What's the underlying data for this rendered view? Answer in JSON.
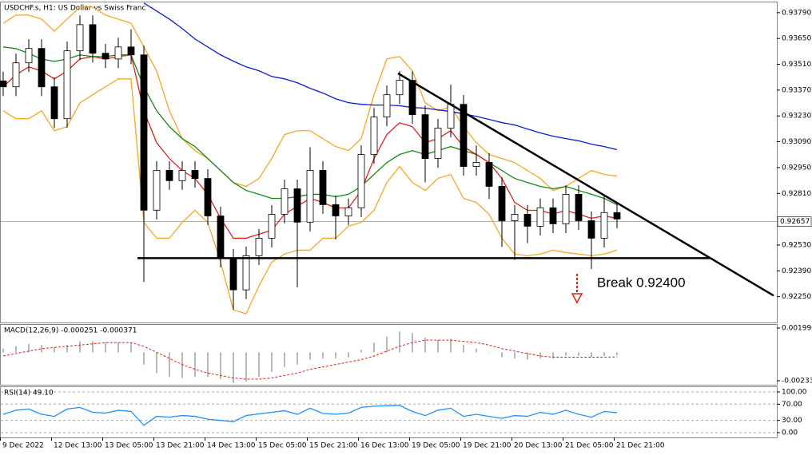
{
  "chart_data": [
    {
      "type": "candlestick",
      "title": "USDCHF.s, H1:  US Dollar vs Swiss Franc",
      "x": [
        1,
        5,
        9,
        13,
        17,
        21,
        25,
        29,
        33,
        37,
        41,
        45,
        49,
        53,
        57,
        61,
        65,
        69,
        73,
        77,
        81,
        85,
        89,
        93,
        97,
        101,
        105,
        109,
        113,
        117,
        121,
        125,
        129,
        133,
        137,
        141,
        145,
        149,
        153,
        157,
        161,
        165,
        169,
        173,
        177,
        181,
        185,
        189,
        193
      ],
      "candles": {
        "open": [
          0.9342,
          0.93388,
          0.93518,
          0.93596,
          0.93388,
          0.93215,
          0.93583,
          0.93725,
          0.9357,
          0.93539,
          0.93604,
          0.93561,
          0.92719,
          0.92935,
          0.92879,
          0.92935,
          0.92891,
          0.92688,
          0.92459,
          0.92287,
          0.92472,
          0.92567,
          0.92697,
          0.92835,
          0.92654,
          0.92935,
          0.92749,
          0.92688,
          0.92732,
          0.93021,
          0.93224,
          0.93345,
          0.93423,
          0.93237,
          0.92999,
          0.93164,
          0.93293,
          0.92956,
          0.92978,
          0.92848,
          0.92662,
          0.92697,
          0.92632,
          0.92732,
          0.92645,
          0.92805,
          0.92662,
          0.92567,
          0.92706
        ],
        "high": [
          0.9347,
          0.93568,
          0.93646,
          0.93646,
          0.93438,
          0.93633,
          0.93775,
          0.93775,
          0.9362,
          0.93654,
          0.937,
          0.93611,
          0.92985,
          0.92985,
          0.92985,
          0.92985,
          0.92941,
          0.92738,
          0.92509,
          0.92522,
          0.92617,
          0.92747,
          0.92885,
          0.92885,
          0.9306,
          0.92985,
          0.92799,
          0.92782,
          0.93071,
          0.93274,
          0.93395,
          0.93473,
          0.93473,
          0.93287,
          0.93214,
          0.934,
          0.93343,
          0.9307,
          0.93028,
          0.92898,
          0.92747,
          0.92747,
          0.92782,
          0.92782,
          0.92855,
          0.92855,
          0.92712,
          0.928,
          0.92756
        ],
        "low": [
          0.93338,
          0.93338,
          0.93468,
          0.93338,
          0.93165,
          0.93165,
          0.93533,
          0.9352,
          0.93489,
          0.93489,
          0.93511,
          0.9233,
          0.92669,
          0.92829,
          0.92829,
          0.92841,
          0.92638,
          0.92409,
          0.9218,
          0.92237,
          0.92422,
          0.92517,
          0.92647,
          0.923,
          0.92604,
          0.92699,
          0.9256,
          0.92638,
          0.92682,
          0.92971,
          0.93174,
          0.93295,
          0.93187,
          0.9287,
          0.92949,
          0.93114,
          0.92906,
          0.92906,
          0.9278,
          0.9252,
          0.9245,
          0.9254,
          0.92582,
          0.92595,
          0.92595,
          0.92612,
          0.924,
          0.92517,
          0.92621
        ],
        "close": [
          0.93388,
          0.93518,
          0.93596,
          0.93388,
          0.93215,
          0.93583,
          0.93725,
          0.9357,
          0.93539,
          0.93604,
          0.93561,
          0.92719,
          0.92935,
          0.92879,
          0.92935,
          0.92891,
          0.92688,
          0.92459,
          0.92287,
          0.92472,
          0.92567,
          0.92697,
          0.92835,
          0.92654,
          0.92935,
          0.92749,
          0.92688,
          0.92732,
          0.93021,
          0.93224,
          0.93345,
          0.93423,
          0.93237,
          0.92999,
          0.93164,
          0.93293,
          0.92956,
          0.92978,
          0.92848,
          0.92662,
          0.92697,
          0.92632,
          0.92732,
          0.92645,
          0.92805,
          0.92662,
          0.92567,
          0.92706,
          0.92671
        ],
        "up_color": "#ffffff",
        "down_color": "#000000",
        "wick_color": "#000000"
      },
      "series": [
        {
          "kind": "line",
          "color": "#f5a623",
          "values": [
            0.93733,
            0.93777,
            0.93777,
            0.93755,
            0.9369,
            0.93755,
            0.9382,
            0.9382,
            0.93777,
            0.93755,
            0.93733,
            0.93604,
            0.93474,
            0.93258,
            0.93107,
            0.93042,
            0.92999,
            0.92934,
            0.92869,
            0.92848,
            0.92891,
            0.92999,
            0.93129,
            0.9315,
            0.9315,
            0.93107,
            0.93064,
            0.93042,
            0.93107,
            0.93345,
            0.93539,
            0.93552,
            0.93474,
            0.93301,
            0.93258,
            0.9328,
            0.93172,
            0.93085,
            0.93021,
            0.92999,
            0.92977,
            0.92934,
            0.92891,
            0.92826,
            0.92848,
            0.92891,
            0.92934,
            0.92913,
            0.92904
          ]
        },
        {
          "kind": "line",
          "color": "#f5a623",
          "values": [
            0.93258,
            0.93215,
            0.93215,
            0.93258,
            0.9315,
            0.93172,
            0.93301,
            0.93345,
            0.93388,
            0.93431,
            0.93431,
            0.92653,
            0.92567,
            0.92567,
            0.92653,
            0.92718,
            0.92653,
            0.92437,
            0.92178,
            0.92157,
            0.92308,
            0.92437,
            0.92481,
            0.92502,
            0.92502,
            0.92567,
            0.92567,
            0.92632,
            0.92653,
            0.92718,
            0.92869,
            0.92956,
            0.92869,
            0.92826,
            0.92891,
            0.92913,
            0.92783,
            0.92761,
            0.92697,
            0.92567,
            0.92481,
            0.92472,
            0.92481,
            0.92502,
            0.92489,
            0.92481,
            0.92472,
            0.92481,
            0.92502
          ]
        },
        {
          "kind": "line",
          "color": "#0a1bd6",
          "values": [
            null,
            null,
            null,
            null,
            null,
            null,
            null,
            null,
            null,
            null,
            null,
            0.93842,
            0.93799,
            0.93755,
            0.93704,
            0.93647,
            0.93604,
            0.93561,
            0.93527,
            0.93496,
            0.93475,
            0.93444,
            0.93431,
            0.9341,
            0.9338,
            0.93354,
            0.93323,
            0.93302,
            0.93293,
            0.93289,
            0.93289,
            0.93285,
            0.93276,
            0.93272,
            0.93263,
            0.93254,
            0.93241,
            0.93228,
            0.93211,
            0.93194,
            0.93181,
            0.93159,
            0.93138,
            0.9312,
            0.93107,
            0.93095,
            0.93077,
            0.93064,
            0.93047
          ]
        },
        {
          "kind": "line",
          "color": "#138a13",
          "values": [
            0.93604,
            0.93595,
            0.93569,
            0.93539,
            0.93526,
            0.93539,
            0.93561,
            0.93552,
            0.93552,
            0.93561,
            0.93561,
            0.93388,
            0.93258,
            0.93172,
            0.93107,
            0.93064,
            0.92999,
            0.92934,
            0.92869,
            0.92826,
            0.92805,
            0.92783,
            0.92783,
            0.92792,
            0.92805,
            0.92805,
            0.92792,
            0.92805,
            0.92848,
            0.92913,
            0.92977,
            0.93021,
            0.93042,
            0.93021,
            0.93042,
            0.93064,
            0.93042,
            0.93021,
            0.92977,
            0.92934,
            0.92891,
            0.92869,
            0.92848,
            0.92835,
            0.92848,
            0.92826,
            0.92805,
            0.92783,
            0.92748
          ]
        },
        {
          "kind": "line",
          "color": "#e0201b",
          "values": [
            0.93388,
            0.93453,
            0.93496,
            0.93474,
            0.93431,
            0.93474,
            0.93539,
            0.93552,
            0.93539,
            0.93552,
            0.93561,
            0.93258,
            0.93085,
            0.92999,
            0.92934,
            0.92891,
            0.92805,
            0.92675,
            0.92567,
            0.92567,
            0.92589,
            0.9261,
            0.92697,
            0.9274,
            0.92783,
            0.92761,
            0.92731,
            0.92731,
            0.92826,
            0.92999,
            0.93129,
            0.93193,
            0.93172,
            0.93085,
            0.93107,
            0.9315,
            0.93064,
            0.93021,
            0.92977,
            0.92891,
            0.92761,
            0.92718,
            0.92718,
            0.92697,
            0.92718,
            0.92697,
            0.92675,
            0.92688,
            0.92675
          ]
        }
      ],
      "lines": [
        {
          "color": "#000000",
          "x": [
            43,
            222
          ],
          "y": [
            0.92459,
            0.92459
          ]
        },
        {
          "color": "#000000",
          "x": [
            124.5,
            242
          ],
          "y": [
            0.93461,
            0.92256
          ]
        }
      ],
      "annotation": "Break 0.92400",
      "current_price": 0.92657,
      "xlim": [
        0,
        243
      ],
      "ylim": [
        0.9211,
        0.9385
      ],
      "yticks": [
        {
          "value": 0.9379,
          "label": "0.93790"
        },
        {
          "value": 0.9365,
          "label": "0.93650"
        },
        {
          "value": 0.9351,
          "label": "0.93510"
        },
        {
          "value": 0.9337,
          "label": "0.93370"
        },
        {
          "value": 0.9323,
          "label": "0.93230"
        },
        {
          "value": 0.9309,
          "label": "0.93090"
        },
        {
          "value": 0.9295,
          "label": "0.92950"
        },
        {
          "value": 0.9281,
          "label": "0.92810"
        },
        {
          "value": 0.9253,
          "label": "0.92530"
        },
        {
          "value": 0.9239,
          "label": "0.92390"
        },
        {
          "value": 0.9225,
          "label": "0.92250"
        }
      ]
    },
    {
      "type": "macd",
      "title": "MACD(12,26,9) -0.000251 -0.000371",
      "x": [
        1,
        5,
        9,
        13,
        17,
        21,
        25,
        29,
        33,
        37,
        41,
        45,
        49,
        53,
        57,
        61,
        65,
        69,
        73,
        77,
        81,
        85,
        89,
        93,
        97,
        101,
        105,
        109,
        113,
        117,
        121,
        125,
        129,
        133,
        137,
        141,
        145,
        149,
        153,
        157,
        161,
        165,
        169,
        173,
        177,
        181,
        185,
        189,
        193
      ],
      "series": [
        {
          "kind": "bar",
          "color": "#a0a0a0",
          "values": [
            0.0003,
            0.0005,
            0.0007,
            0.0006,
            0.0004,
            0.0006,
            0.0009,
            0.0009,
            0.0008,
            0.0008,
            0.0008,
            -0.001,
            -0.0017,
            -0.002,
            -0.0021,
            -0.002,
            -0.002,
            -0.0022,
            -0.0025,
            -0.0024,
            -0.002,
            -0.0016,
            -0.0012,
            -0.001,
            -0.0006,
            -0.0005,
            -0.0005,
            -0.0004,
            0.0002,
            0.0008,
            0.0013,
            0.0017,
            0.0016,
            0.0012,
            0.001,
            0.0011,
            0.0006,
            0.0003,
            0,
            -0.0004,
            -0.0005,
            -0.0006,
            -0.0005,
            -0.0005,
            -0.0003,
            -0.0003,
            -0.0004,
            -0.0003,
            -0.000251
          ]
        },
        {
          "kind": "dashed",
          "color": "#e0201b",
          "values": [
            -0.0003,
            -0.0001,
            0.0001,
            0.0003,
            0.0004,
            0.0005,
            0.0006,
            0.0007,
            0.0008,
            0.0008,
            0.0008,
            0.0005,
            0,
            -0.0005,
            -0.001,
            -0.0014,
            -0.0017,
            -0.0019,
            -0.0021,
            -0.0022,
            -0.0022,
            -0.0021,
            -0.0019,
            -0.0017,
            -0.0014,
            -0.0012,
            -0.001,
            -0.0008,
            -0.0006,
            -0.0003,
            0.0001,
            0.0005,
            0.0008,
            0.001,
            0.001,
            0.001,
            0.0009,
            0.0008,
            0.0006,
            0.0003,
            0.0001,
            -0.0001,
            -0.0003,
            -0.0004,
            -0.0004,
            -0.0004,
            -0.0004,
            -0.0004,
            -0.000371
          ]
        }
      ],
      "xlim": [
        0,
        243
      ],
      "ylim": [
        -0.00266,
        0.00232
      ],
      "yticks": [
        {
          "value": 0.00199,
          "label": "0.001990"
        },
        -0.002331
      ]
    },
    {
      "type": "line",
      "title": "RSI(14) 49.10",
      "x": [
        1,
        5,
        9,
        13,
        17,
        21,
        25,
        29,
        33,
        37,
        41,
        45,
        49,
        53,
        57,
        61,
        65,
        69,
        73,
        77,
        81,
        85,
        89,
        93,
        97,
        101,
        105,
        109,
        113,
        117,
        121,
        125,
        129,
        133,
        137,
        141,
        145,
        149,
        153,
        157,
        161,
        165,
        169,
        173,
        177,
        181,
        185,
        189,
        193
      ],
      "series": [
        {
          "kind": "line",
          "color": "#1e90ff",
          "values": [
            45,
            55,
            58,
            45,
            40,
            58,
            62,
            50,
            48,
            55,
            52,
            18,
            40,
            38,
            42,
            40,
            33,
            30,
            27,
            42,
            46,
            50,
            54,
            45,
            60,
            47,
            45,
            48,
            62,
            65,
            66,
            67,
            52,
            42,
            55,
            60,
            40,
            45,
            40,
            35,
            42,
            40,
            50,
            45,
            55,
            45,
            38,
            52,
            49.1
          ]
        }
      ],
      "xlim": [
        0,
        243
      ],
      "ylim": [
        -11.8,
        113.7
      ],
      "yticks": [
        {
          "value": 100,
          "label": "100.00"
        },
        {
          "value": 70,
          "label": "70.00"
        },
        {
          "value": 30,
          "label": "30.00"
        },
        {
          "value": 0,
          "label": "0.00"
        }
      ],
      "grid": true,
      "xticks": [
        {
          "value": 0,
          "label": "9 Dec 2022"
        },
        {
          "value": 16,
          "label": "12 Dec 13:00"
        },
        {
          "value": 32,
          "label": "13 Dec 05:00"
        },
        {
          "value": 48,
          "label": "13 Dec 21:00"
        },
        {
          "value": 64,
          "label": "14 Dec 13:00"
        },
        {
          "value": 80,
          "label": "15 Dec 05:00"
        },
        {
          "value": 96,
          "label": "15 Dec 21:00"
        },
        {
          "value": 112,
          "label": "16 Dec 13:00"
        },
        {
          "value": 128,
          "label": "19 Dec 05:00"
        },
        {
          "value": 144,
          "label": "19 Dec 21:00"
        },
        {
          "value": 160,
          "label": "20 Dec 13:00"
        },
        {
          "value": 176,
          "label": "21 Dec 05:00"
        },
        {
          "value": 192,
          "label": "21 Dec 21:00"
        }
      ]
    }
  ]
}
